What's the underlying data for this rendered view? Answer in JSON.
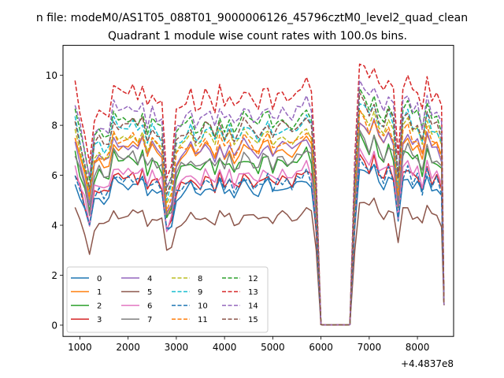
{
  "chart_data": {
    "type": "line",
    "suptitle": "n file: modeM0/AS1T05_088T01_9000006126_45796cztM0_level2_quad_clean",
    "title": "Quadrant 1 module wise count rates with 100.0s bins.",
    "xlabel": "",
    "ylabel": "",
    "xlim": [
      650,
      8750
    ],
    "ylim": [
      -0.45,
      11.2
    ],
    "x_ticks": [
      1000,
      2000,
      3000,
      4000,
      5000,
      6000,
      7000,
      8000
    ],
    "y_ticks": [
      0,
      2,
      4,
      6,
      8,
      10
    ],
    "x_offset_label": "+4.4837e8",
    "grid": false,
    "legend_position": "lower-left",
    "legend_columns": 4,
    "bins": {
      "x": [
        900,
        1000,
        1100,
        1200,
        1300,
        1400,
        1500,
        1600,
        1700,
        1800,
        1900,
        2000,
        2100,
        2200,
        2300,
        2400,
        2500,
        2600,
        2700,
        2800,
        2900,
        3000,
        3100,
        3200,
        3300,
        3400,
        3500,
        3600,
        3700,
        3800,
        3900,
        4000,
        4100,
        4200,
        4300,
        4400,
        4500,
        4600,
        4700,
        4800,
        4900,
        5000,
        5100,
        5200,
        5300,
        5400,
        5500,
        5600,
        5700,
        5800,
        5900,
        6000,
        6100,
        6200,
        6300,
        6400,
        6500,
        6600,
        6700,
        6800,
        6900,
        7000,
        7100,
        7200,
        7300,
        7400,
        7500,
        7600,
        7700,
        7800,
        7900,
        8000,
        8100,
        8200,
        8300,
        8400,
        8500,
        8550
      ],
      "y_baseline": [
        5.8,
        5.2,
        4.6,
        3.8,
        5.0,
        5.2,
        5.0,
        5.1,
        5.8,
        5.6,
        5.7,
        5.6,
        5.7,
        5.5,
        5.8,
        5.2,
        5.6,
        5.4,
        5.3,
        3.6,
        3.9,
        5.1,
        5.3,
        5.4,
        5.6,
        5.2,
        5.3,
        5.6,
        5.5,
        5.2,
        5.7,
        5.3,
        5.6,
        5.2,
        5.4,
        5.7,
        5.5,
        5.4,
        5.3,
        5.6,
        5.7,
        5.3,
        5.5,
        5.6,
        5.5,
        5.4,
        5.6,
        5.8,
        5.9,
        5.6,
        3.7,
        0.02,
        0.01,
        0.01,
        0.01,
        0.02,
        0.01,
        0.02,
        4.0,
        6.4,
        6.2,
        5.9,
        6.3,
        5.8,
        5.6,
        6.0,
        5.7,
        4.0,
        5.8,
        6.0,
        5.6,
        5.7,
        5.2,
        5.9,
        5.5,
        5.6,
        5.2,
        0.8
      ]
    },
    "series": [
      {
        "name": "0",
        "color": "#1f77b4",
        "dash": "solid",
        "offset": 0.0
      },
      {
        "name": "1",
        "color": "#ff7f0e",
        "dash": "solid",
        "offset": 1.55
      },
      {
        "name": "2",
        "color": "#2ca02c",
        "dash": "solid",
        "offset": 1.0
      },
      {
        "name": "3",
        "color": "#d62728",
        "dash": "solid",
        "offset": 0.3
      },
      {
        "name": "4",
        "color": "#9467bd",
        "dash": "solid",
        "offset": 1.6
      },
      {
        "name": "5",
        "color": "#8c564b",
        "dash": "solid",
        "offset": -1.2
      },
      {
        "name": "6",
        "color": "#e377c2",
        "dash": "solid",
        "offset": 0.5
      },
      {
        "name": "7",
        "color": "#7f7f7f",
        "dash": "solid",
        "offset": 1.1
      },
      {
        "name": "8",
        "color": "#bcbd22",
        "dash": "dashed",
        "offset": 2.0
      },
      {
        "name": "9",
        "color": "#17becf",
        "dash": "dashed",
        "offset": 2.3
      },
      {
        "name": "10",
        "color": "#1f77b4",
        "dash": "dashed",
        "offset": 0.2
      },
      {
        "name": "11",
        "color": "#ff7f0e",
        "dash": "dashed",
        "offset": 1.8
      },
      {
        "name": "12",
        "color": "#2ca02c",
        "dash": "dashed",
        "offset": 2.7
      },
      {
        "name": "13",
        "color": "#d62728",
        "dash": "dashed",
        "offset": 3.7
      },
      {
        "name": "14",
        "color": "#9467bd",
        "dash": "dashed",
        "offset": 3.0
      },
      {
        "name": "15",
        "color": "#8c564b",
        "dash": "dashed",
        "offset": 2.4
      }
    ]
  }
}
